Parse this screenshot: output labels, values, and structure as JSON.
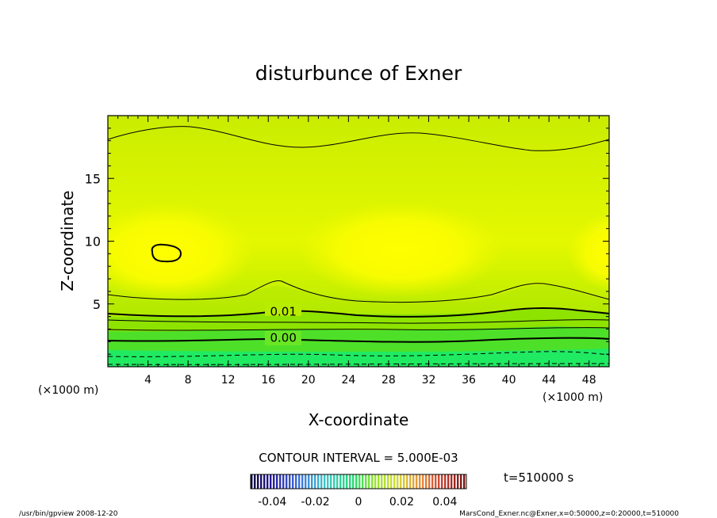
{
  "chart_data": {
    "type": "heatmap",
    "title": "disturbunce of Exner",
    "xlabel": "X-coordinate",
    "ylabel": "Z-coordinate",
    "x_unit_note": "(×1000 m)",
    "y_unit_note": "(×1000 m)",
    "xlim": [
      0,
      50
    ],
    "ylim": [
      0,
      20
    ],
    "x_ticks": [
      "4",
      "8",
      "12",
      "16",
      "20",
      "24",
      "28",
      "32",
      "36",
      "40",
      "44",
      "48"
    ],
    "y_ticks": [
      "5",
      "10",
      "15"
    ],
    "contour_labels": [
      {
        "text": "0.01",
        "x": 17.5,
        "z": 4.4
      },
      {
        "text": "0.00",
        "x": 17.5,
        "z": 2.3
      }
    ],
    "contour_interval_text": "CONTOUR INTERVAL = 5.000E-03",
    "colorbar": {
      "min": -0.05,
      "max": 0.05,
      "tick_labels": [
        "-0.04",
        "-0.02",
        "0",
        "0.02",
        "0.04"
      ],
      "tick_values": [
        -0.04,
        -0.02,
        0,
        0.02,
        0.04
      ]
    },
    "time_text": "t=510000 s"
  },
  "footer": {
    "left": "/usr/bin/gpview   2008-12-20",
    "right": "MarsCond_Exner.nc@Exner,x=0:50000,z=0:20000,t=510000"
  }
}
